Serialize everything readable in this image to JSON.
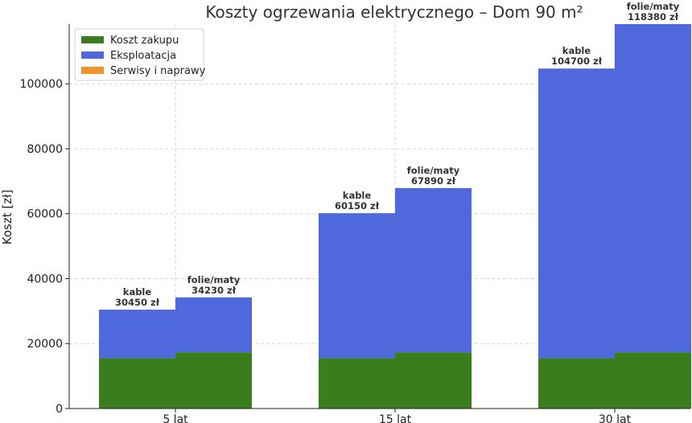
{
  "chart_data": {
    "type": "bar",
    "stacked": true,
    "title": "Koszty ogrzewania elektrycznego – Dom 90 m²",
    "xlabel": "",
    "ylabel": "Koszt [zł]",
    "ylim": [
      0,
      118380
    ],
    "yticks": [
      0,
      20000,
      40000,
      60000,
      80000,
      100000
    ],
    "grid": true,
    "legend_position": "top-left",
    "categories": [
      "5 lat",
      "15 lat",
      "30 lat"
    ],
    "groups": [
      "kable",
      "folie/maty"
    ],
    "series": [
      {
        "name": "Koszt zakupu",
        "color": "#3a7d1e",
        "values": {
          "kable": [
            15500,
            15500,
            15500
          ],
          "folie/maty": [
            17300,
            17300,
            17300
          ]
        }
      },
      {
        "name": "Eksploatacja",
        "color": "#4f69dc",
        "values": {
          "kable": [
            14950,
            44650,
            89200
          ],
          "folie/maty": [
            16930,
            50590,
            101080
          ]
        }
      },
      {
        "name": "Serwisy i naprawy",
        "color": "#f0922d",
        "values": {
          "kable": [
            0,
            0,
            0
          ],
          "folie/maty": [
            0,
            0,
            0
          ]
        }
      }
    ],
    "totals_labels": {
      "kable": [
        "30450 zł",
        "60150 zł",
        "104700 zł"
      ],
      "folie/maty": [
        "34230 zł",
        "67890 zł",
        "118380 zł"
      ]
    }
  }
}
